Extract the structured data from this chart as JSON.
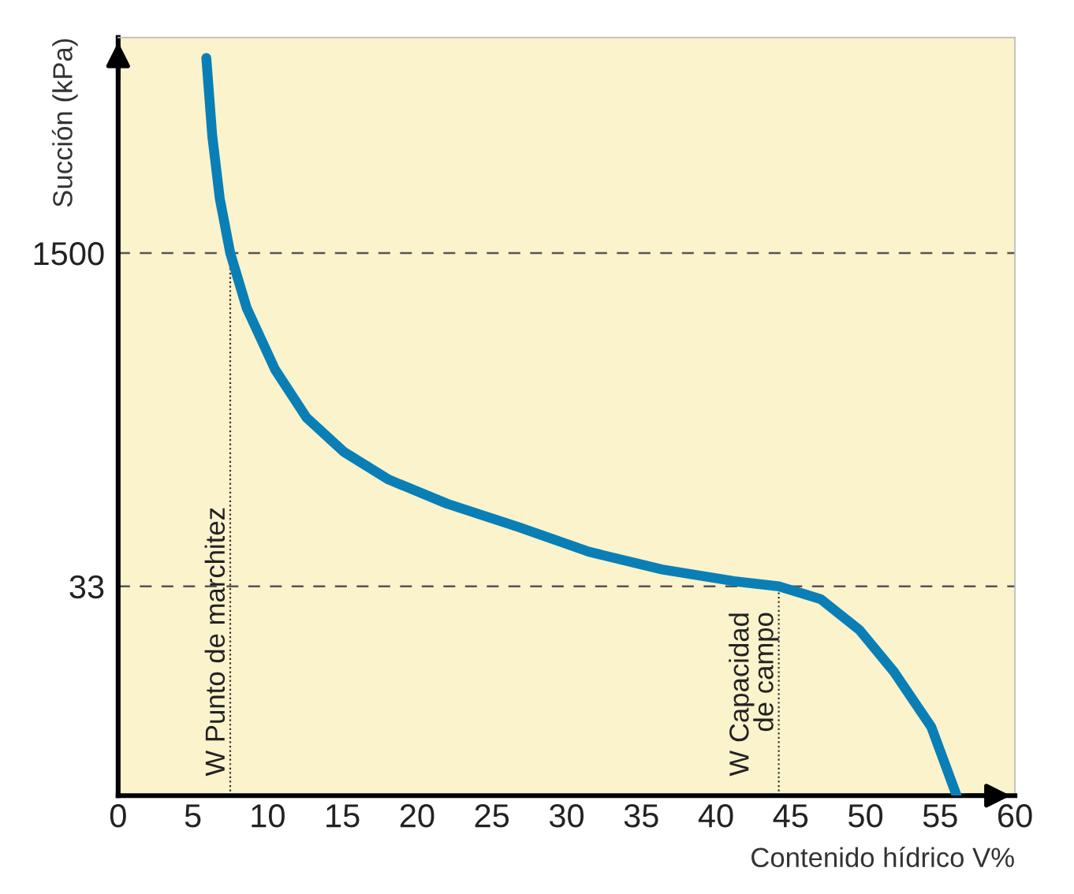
{
  "chart_data": {
    "type": "line",
    "xlabel": "Contenido hídrico V%",
    "ylabel": "Succión (kPa)",
    "x": [
      5.9,
      6.3,
      6.8,
      7.5,
      8.6,
      10.5,
      12.6,
      15.1,
      18.1,
      22.0,
      26.8,
      31.5,
      36.4,
      41.2,
      44.2,
      47.0,
      49.6,
      51.9,
      54.4,
      56.1
    ],
    "series": [
      {
        "color": "#0a7fb5",
        "values": [
          14000,
          5700,
          2800,
          1500,
          800,
          395,
          228,
          154,
          112,
          85,
          65,
          49,
          40,
          35,
          33,
          28.5,
          20,
          12.4,
          6.6,
          3
        ]
      }
    ],
    "log": "y",
    "xlim": [
      0,
      60
    ],
    "ylim": [
      3,
      17700
    ],
    "xticks": [
      0,
      5,
      10,
      15,
      20,
      25,
      30,
      35,
      40,
      45,
      50,
      55,
      60
    ],
    "yticks": [
      33,
      1500
    ],
    "grid": false,
    "marker": "none",
    "line_style": "solid",
    "ref_lines": [
      {
        "axis": "y",
        "value": 1500,
        "line_style": "dashed",
        "color": "#555555"
      },
      {
        "axis": "y",
        "value": 33,
        "line_style": "dashed",
        "color": "#555555"
      },
      {
        "axis": "x",
        "value": 7.5,
        "label": "W Punto de marchitez",
        "line_style": "dotted",
        "color": "#333333"
      },
      {
        "axis": "x",
        "value": 44.2,
        "label": "W Capacidad\nde campo",
        "line_style": "dotted",
        "color": "#333333"
      }
    ]
  }
}
